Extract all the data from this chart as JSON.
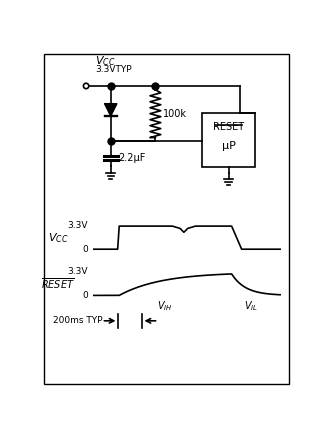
{
  "background_color": "#ffffff",
  "border_color": "#000000",
  "line_color": "#000000",
  "line_width": 1.2,
  "fig_width": 3.25,
  "fig_height": 4.34,
  "dpi": 100,
  "vcc_typ": "3.3VTYP",
  "resistor_label": "100k",
  "cap_label": "2.2μF",
  "box_reset": "RESET",
  "box_up": "μP",
  "vcc_3v3": "3.3V",
  "vcc_0": "0",
  "rst_3v3": "3.3V",
  "rst_0": "0",
  "vih_label": "V",
  "vih_sub": "IH",
  "vil_label": "V",
  "vil_sub": "IL",
  "time_label": "200ms TYP"
}
